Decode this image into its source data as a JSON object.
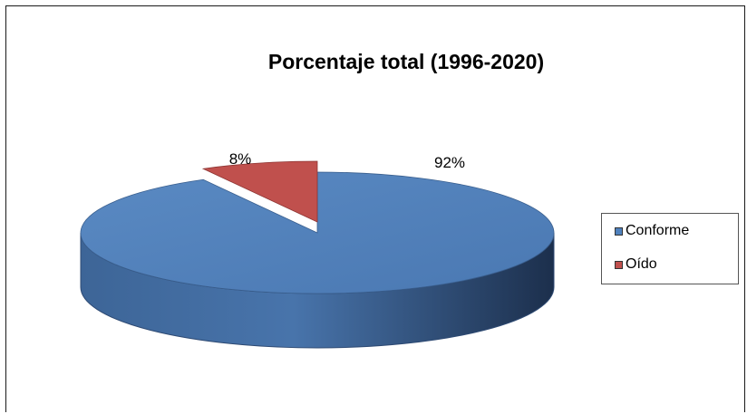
{
  "chart_data": {
    "type": "pie",
    "title": "Porcentaje total (1996-2020)",
    "categories": [
      "Conforme",
      "Oído"
    ],
    "values": [
      92,
      8
    ],
    "data_labels": [
      "92%",
      "8%"
    ],
    "colors": [
      "#4f81bd",
      "#c0504d"
    ],
    "style": "3d",
    "legend_position": "right"
  }
}
